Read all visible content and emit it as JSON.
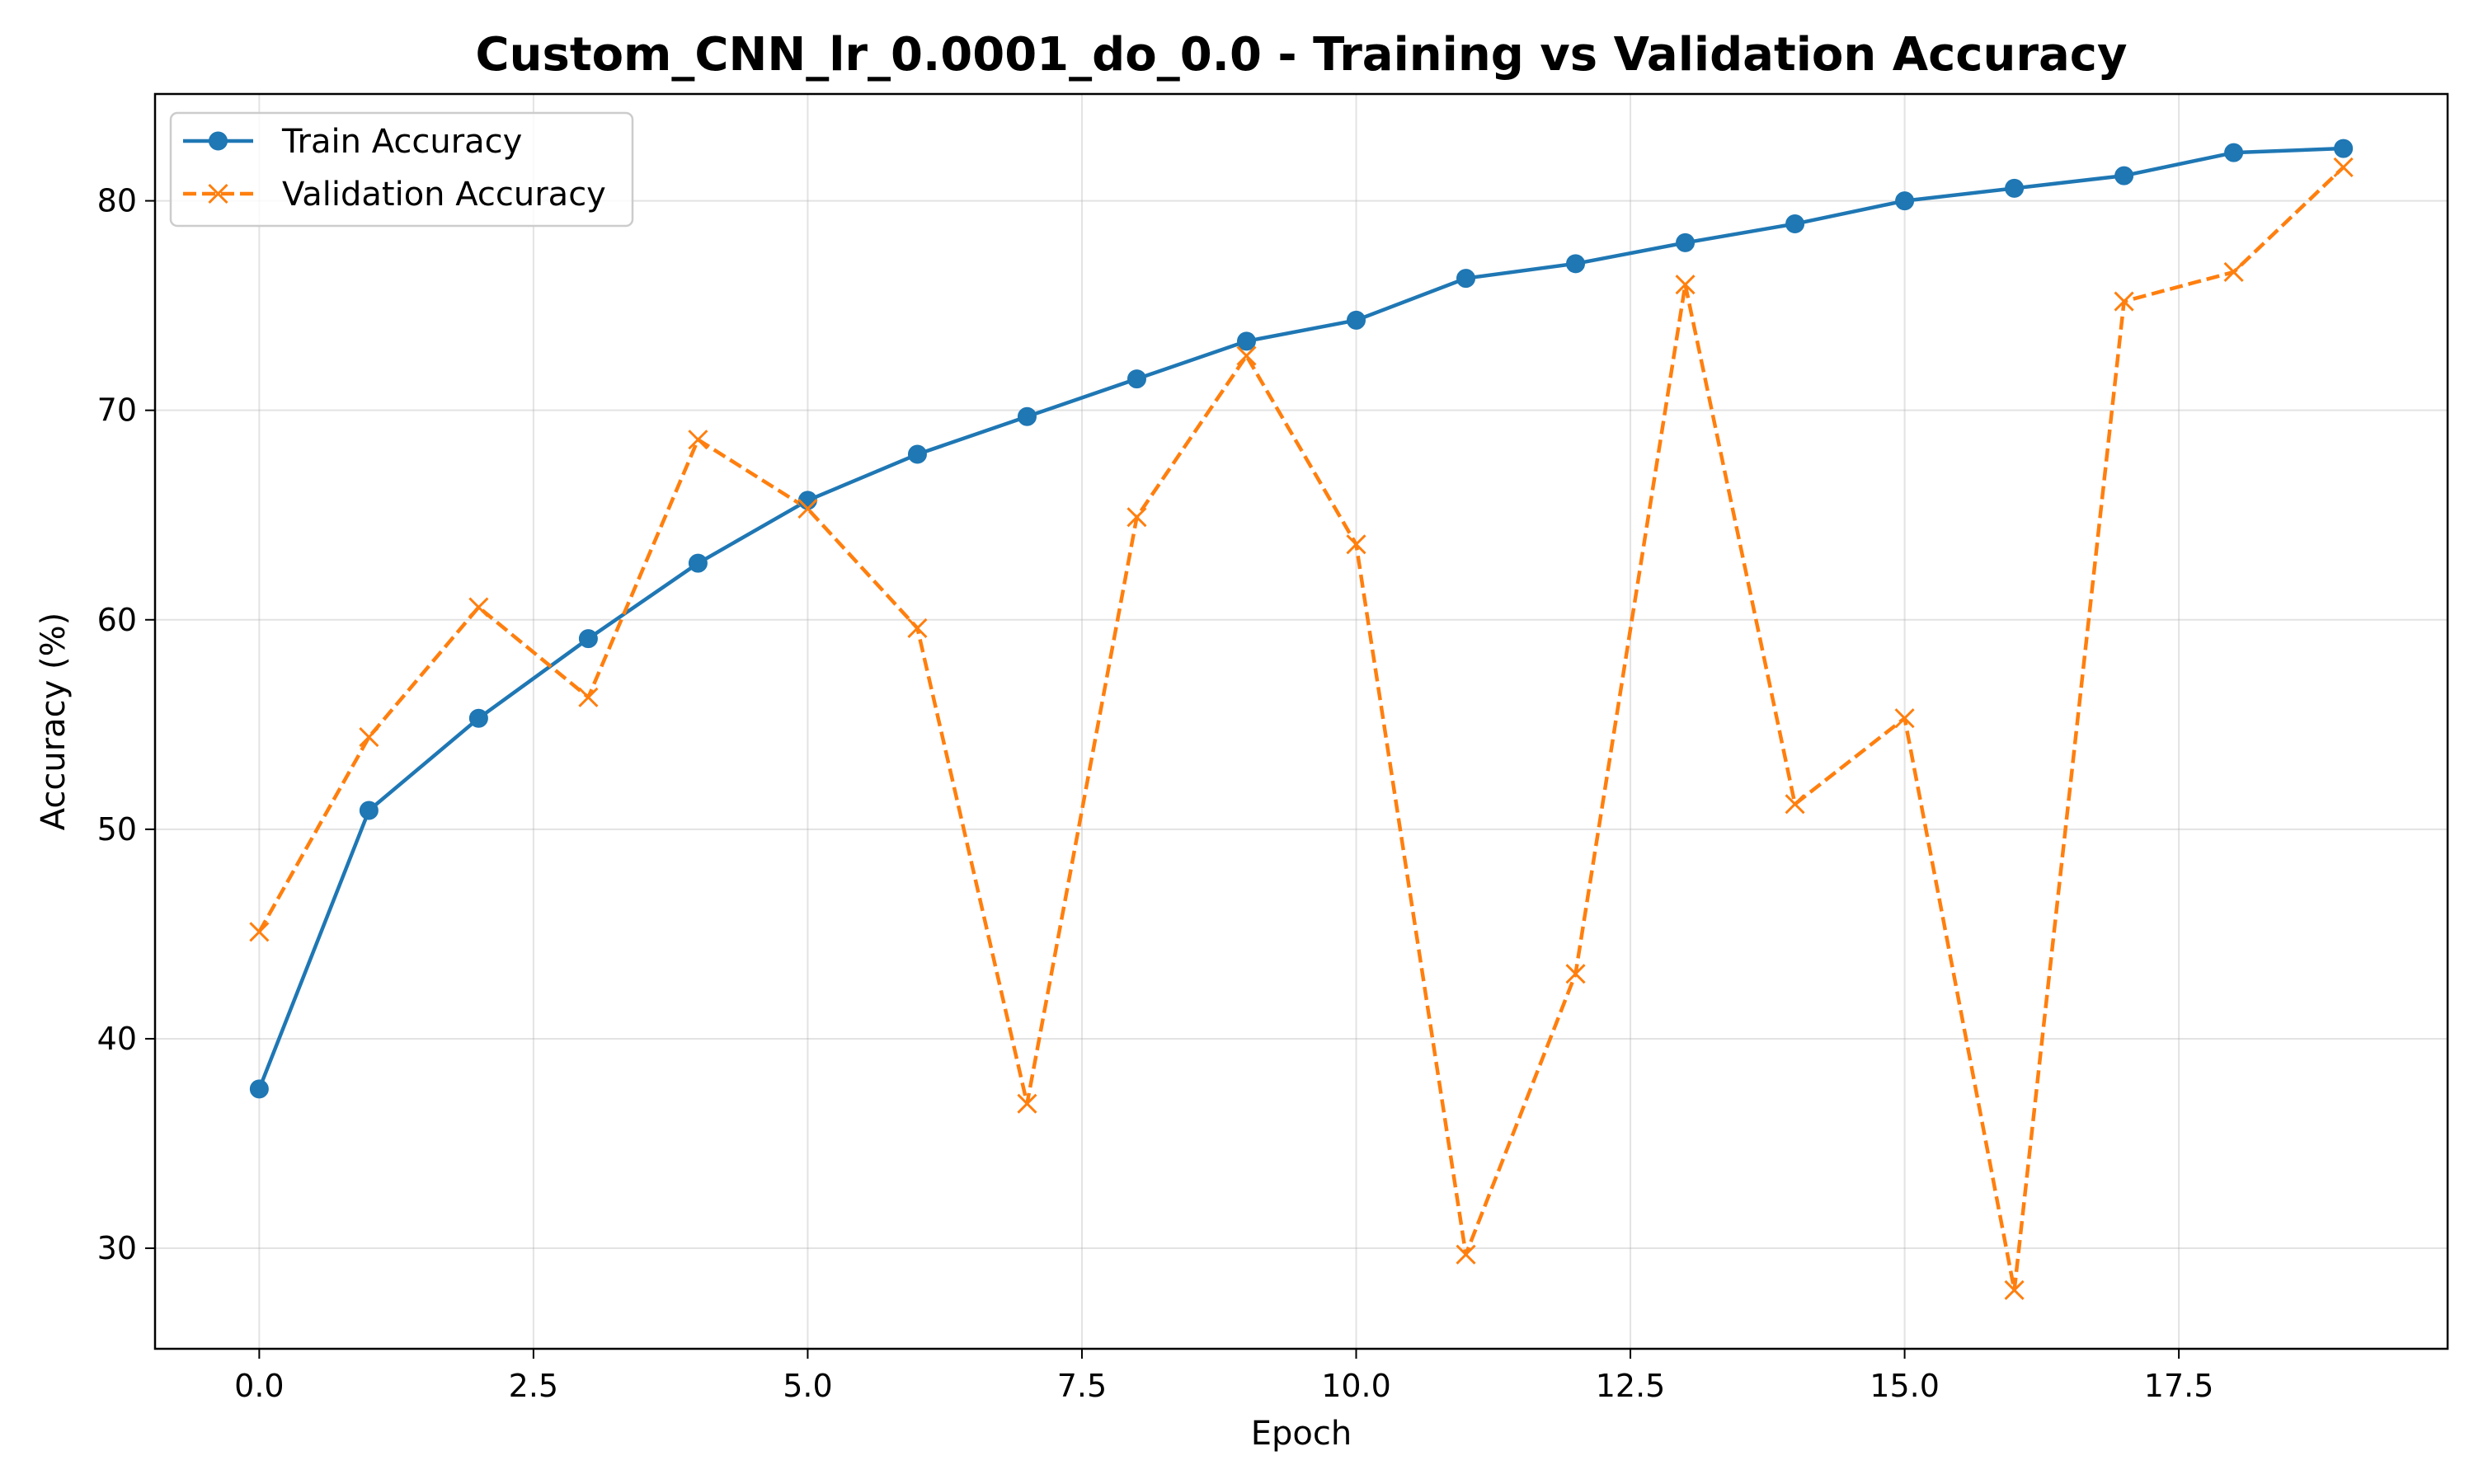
{
  "chart_data": {
    "type": "line",
    "title": "Custom_CNN_lr_0.0001_do_0.0 - Training vs Validation Accuracy",
    "xlabel": "Epoch",
    "ylabel": "Accuracy (%)",
    "xlim": [
      -0.95,
      19.95
    ],
    "ylim": [
      25.2,
      85.1
    ],
    "xticks": [
      0.0,
      2.5,
      5.0,
      7.5,
      10.0,
      12.5,
      15.0,
      17.5
    ],
    "xtick_labels": [
      "0.0",
      "2.5",
      "5.0",
      "7.5",
      "10.0",
      "12.5",
      "15.0",
      "17.5"
    ],
    "yticks": [
      30,
      40,
      50,
      60,
      70,
      80
    ],
    "ytick_labels": [
      "30",
      "40",
      "50",
      "60",
      "70",
      "80"
    ],
    "grid": true,
    "legend_position": "top-left",
    "x": [
      0,
      1,
      2,
      3,
      4,
      5,
      6,
      7,
      8,
      9,
      10,
      11,
      12,
      13,
      14,
      15,
      16,
      17,
      18,
      19
    ],
    "series": [
      {
        "name": "Train Accuracy",
        "color": "#1f77b4",
        "marker": "circle",
        "linestyle": "solid",
        "values": [
          37.6,
          50.9,
          55.3,
          59.1,
          62.7,
          65.7,
          67.9,
          69.7,
          71.5,
          73.3,
          74.3,
          76.3,
          77.0,
          78.0,
          78.9,
          80.0,
          80.6,
          81.2,
          82.3,
          82.5
        ]
      },
      {
        "name": "Validation Accuracy",
        "color": "#ff7f0e",
        "marker": "x",
        "linestyle": "dashed",
        "values": [
          45.1,
          54.4,
          60.6,
          56.3,
          68.6,
          65.3,
          59.6,
          36.9,
          64.9,
          72.6,
          63.6,
          29.7,
          43.1,
          76.0,
          51.2,
          55.3,
          28.0,
          75.2,
          76.6,
          81.6
        ]
      }
    ]
  }
}
